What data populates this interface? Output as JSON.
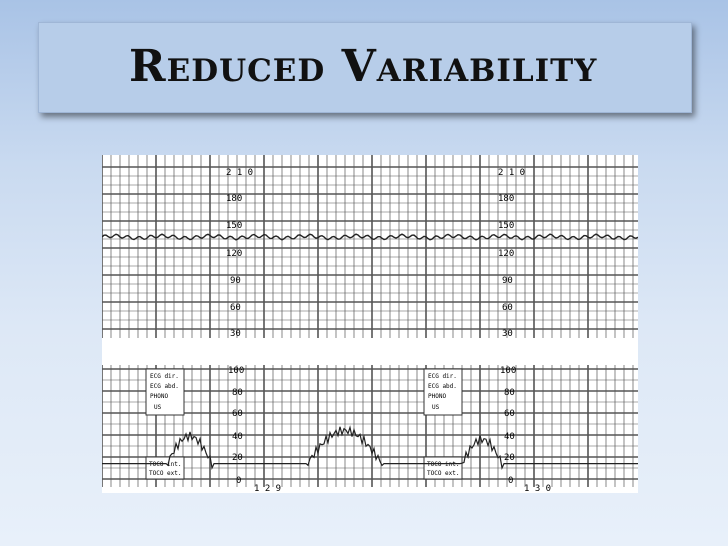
{
  "slide": {
    "title": "Reduced Variability"
  },
  "ctg": {
    "fhr_scale": [
      "2 1 0",
      "180",
      "150",
      "120",
      "90",
      "60",
      "30"
    ],
    "uc_scale": [
      "100",
      "80",
      "60",
      "40",
      "20",
      "0"
    ],
    "box_labels": [
      "ECG dir.",
      "ECG abd.",
      "PHONO",
      "US"
    ],
    "box_labels_bottom": [
      "TOCO int.",
      "TOCO ext."
    ],
    "page_numbers": [
      "1 2 9",
      "1 3 0"
    ],
    "baseline_bpm": 135,
    "colors": {
      "grid": "#555555",
      "trace": "#222222",
      "paper": "#ffffff"
    }
  }
}
